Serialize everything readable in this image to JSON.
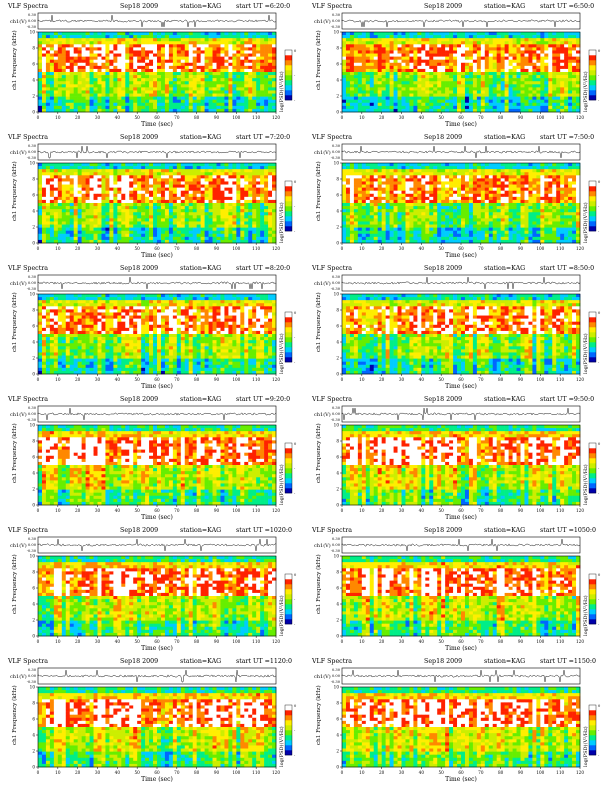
{
  "figure": {
    "panel_label": "VLF Spectra",
    "date": "Sep18 2009",
    "station": "station=KAG",
    "y_top_label": "ch1(V)",
    "y_main_label": "ch1\nFrequency (kHz)",
    "x_label": "Time (sec)",
    "colorbar_label": "log(PSD)(V²/Hz)",
    "x_ticks": [
      "0",
      "10",
      "20",
      "30",
      "40",
      "50",
      "60",
      "70",
      "80",
      "90",
      "100",
      "110",
      "120"
    ],
    "freq_ticks": [
      "0",
      "2",
      "4",
      "6",
      "8",
      "10"
    ],
    "amp_ticks_left": [
      "0.30",
      "0.00",
      "-0.30"
    ],
    "amp_ticks_right": [
      "0.30",
      "0.00",
      "-0.30"
    ],
    "colorbar_ticks": [
      "0",
      "-",
      "-"
    ]
  },
  "panels": [
    {
      "start": "start UT =6:20:0"
    },
    {
      "start": "start UT =6:50:0"
    },
    {
      "start": "start UT =7:20:0"
    },
    {
      "start": "start UT =7:50:0"
    },
    {
      "start": "start UT =8:20:0"
    },
    {
      "start": "start UT =8:50:0"
    },
    {
      "start": "start UT =9:20:0"
    },
    {
      "start": "start UT =9:50:0"
    },
    {
      "start": "start UT =1020:0"
    },
    {
      "start": "start UT =1050:0"
    },
    {
      "start": "start UT =1120:0"
    },
    {
      "start": "start UT =1150:0"
    }
  ],
  "chart_data": {
    "type": "heatmap",
    "description_units": "time (sec) vs frequency (kHz), color = log PSD",
    "x_range": [
      0,
      120
    ],
    "y_range": [
      0,
      10
    ],
    "amplitude_range": [
      -0.3,
      0.3
    ],
    "colormap": [
      "#0000aa",
      "#0066ff",
      "#00ccff",
      "#00ee88",
      "#66ee00",
      "#ccee00",
      "#ffee00",
      "#ff8800",
      "#ff2200",
      "#ffffff"
    ],
    "intensity_bands_kHz": [
      {
        "from": 0,
        "to": 2,
        "level": 0.35
      },
      {
        "from": 2,
        "to": 5,
        "level": 0.5
      },
      {
        "from": 5,
        "to": 8.5,
        "level": 0.8
      },
      {
        "from": 8.5,
        "to": 9.3,
        "level": 0.6
      },
      {
        "from": 9.3,
        "to": 10,
        "level": 0.3
      }
    ]
  }
}
